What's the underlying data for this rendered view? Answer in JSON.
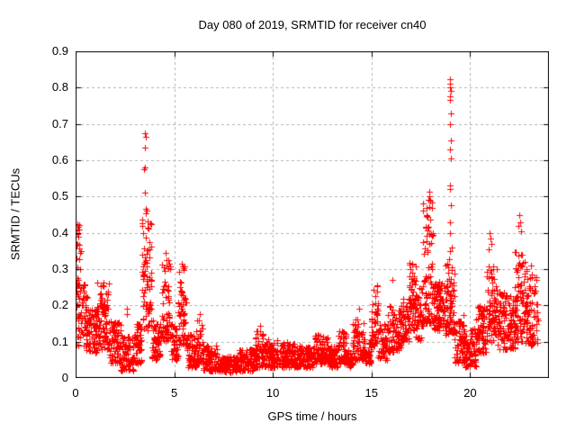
{
  "window": {
    "background_color": "#ffffff",
    "text_color": "#000000"
  },
  "chart_data": {
    "type": "scatter",
    "title": "Day 080 of 2019, SRMTID for receiver cn40",
    "xlabel": "GPS time / hours",
    "ylabel": "SRMTID / TECUs",
    "xlim": [
      0,
      24
    ],
    "ylim": [
      0,
      0.9
    ],
    "xticks": [
      0,
      5,
      10,
      15,
      20
    ],
    "yticks": [
      0,
      0.1,
      0.2,
      0.3,
      0.4,
      0.5,
      0.6,
      0.7,
      0.8,
      0.9
    ],
    "grid": true,
    "grid_style": "dashed",
    "grid_color": "#b0b0b0",
    "border_color": "#000000",
    "legend_position": "none",
    "series_name": "SRMTID",
    "marker": {
      "symbol": "plus",
      "color": "#ff0000",
      "size": 7
    },
    "seed": 7,
    "density_segments": [
      [
        0.0,
        0.3,
        0.16,
        0.43,
        30,
        1.0
      ],
      [
        0.05,
        0.6,
        0.09,
        0.26,
        55,
        1.4
      ],
      [
        0.5,
        1.1,
        0.07,
        0.19,
        80,
        1.2
      ],
      [
        1.1,
        1.7,
        0.08,
        0.27,
        85,
        1.5
      ],
      [
        1.7,
        2.3,
        0.04,
        0.16,
        70,
        1.4
      ],
      [
        2.3,
        3.05,
        0.02,
        0.12,
        85,
        1.3
      ],
      [
        3.05,
        3.35,
        0.04,
        0.15,
        40,
        1.3
      ],
      [
        3.35,
        3.85,
        0.13,
        0.46,
        75,
        1.3
      ],
      [
        3.85,
        4.35,
        0.05,
        0.16,
        55,
        1.3
      ],
      [
        4.35,
        4.85,
        0.1,
        0.33,
        70,
        1.4
      ],
      [
        4.85,
        5.2,
        0.05,
        0.15,
        40,
        1.3
      ],
      [
        5.2,
        5.65,
        0.09,
        0.31,
        60,
        1.4
      ],
      [
        5.65,
        6.1,
        0.03,
        0.12,
        55,
        1.3
      ],
      [
        6.1,
        6.45,
        0.04,
        0.16,
        40,
        1.4
      ],
      [
        6.45,
        7.2,
        0.02,
        0.09,
        90,
        1.3
      ],
      [
        7.2,
        8.3,
        0.015,
        0.06,
        130,
        1.1
      ],
      [
        8.3,
        9.1,
        0.02,
        0.08,
        95,
        1.2
      ],
      [
        9.1,
        9.6,
        0.03,
        0.13,
        60,
        1.5
      ],
      [
        9.6,
        10.3,
        0.03,
        0.11,
        85,
        1.4
      ],
      [
        10.3,
        11.2,
        0.03,
        0.1,
        105,
        1.3
      ],
      [
        11.2,
        12.1,
        0.03,
        0.09,
        105,
        1.2
      ],
      [
        12.1,
        12.8,
        0.04,
        0.12,
        80,
        1.4
      ],
      [
        12.8,
        13.3,
        0.03,
        0.09,
        60,
        1.2
      ],
      [
        13.3,
        13.7,
        0.04,
        0.13,
        48,
        1.4
      ],
      [
        13.7,
        14.05,
        0.03,
        0.08,
        42,
        1.2
      ],
      [
        14.05,
        14.6,
        0.05,
        0.18,
        60,
        1.5
      ],
      [
        14.6,
        15.0,
        0.04,
        0.11,
        45,
        1.3
      ],
      [
        15.0,
        15.35,
        0.09,
        0.28,
        45,
        1.4
      ],
      [
        15.35,
        15.8,
        0.05,
        0.15,
        50,
        1.3
      ],
      [
        15.8,
        16.5,
        0.07,
        0.2,
        85,
        1.3
      ],
      [
        16.5,
        16.9,
        0.1,
        0.22,
        50,
        1.2
      ],
      [
        16.9,
        17.25,
        0.13,
        0.32,
        55,
        1.3
      ],
      [
        17.25,
        17.6,
        0.1,
        0.25,
        45,
        1.2
      ],
      [
        17.6,
        18.15,
        0.15,
        0.5,
        85,
        1.5
      ],
      [
        18.15,
        18.7,
        0.13,
        0.27,
        95,
        1.0
      ],
      [
        18.75,
        19.2,
        0.12,
        0.33,
        75,
        1.2
      ],
      [
        19.2,
        19.7,
        0.04,
        0.18,
        65,
        1.3
      ],
      [
        19.7,
        20.3,
        0.03,
        0.14,
        70,
        1.3
      ],
      [
        20.3,
        20.85,
        0.07,
        0.2,
        70,
        1.2
      ],
      [
        20.85,
        21.4,
        0.1,
        0.31,
        80,
        1.3
      ],
      [
        21.4,
        22.25,
        0.08,
        0.24,
        110,
        1.2
      ],
      [
        22.25,
        22.8,
        0.1,
        0.35,
        85,
        1.3
      ],
      [
        22.8,
        23.45,
        0.09,
        0.3,
        80,
        1.3
      ]
    ],
    "outlier_points": [
      [
        0.07,
        0.425
      ],
      [
        0.1,
        0.41
      ],
      [
        0.12,
        0.39
      ],
      [
        0.08,
        0.37
      ],
      [
        2.58,
        0.19
      ],
      [
        2.62,
        0.175
      ],
      [
        3.5,
        0.675
      ],
      [
        3.55,
        0.665
      ],
      [
        3.5,
        0.635
      ],
      [
        3.53,
        0.58
      ],
      [
        3.47,
        0.575
      ],
      [
        3.5,
        0.51
      ],
      [
        3.56,
        0.465
      ],
      [
        3.62,
        0.46
      ],
      [
        4.55,
        0.345
      ],
      [
        5.4,
        0.315
      ],
      [
        6.28,
        0.175
      ],
      [
        9.35,
        0.145
      ],
      [
        14.35,
        0.19
      ],
      [
        16.05,
        0.27
      ],
      [
        17.05,
        0.315
      ],
      [
        17.93,
        0.513
      ],
      [
        17.95,
        0.5
      ],
      [
        17.9,
        0.49
      ],
      [
        18.98,
        0.823
      ],
      [
        19.0,
        0.81
      ],
      [
        18.99,
        0.8
      ],
      [
        19.02,
        0.79
      ],
      [
        18.97,
        0.775
      ],
      [
        19.0,
        0.765
      ],
      [
        19.01,
        0.73
      ],
      [
        18.99,
        0.7
      ],
      [
        19.02,
        0.655
      ],
      [
        19.0,
        0.63
      ],
      [
        19.03,
        0.605
      ],
      [
        18.98,
        0.53
      ],
      [
        19.0,
        0.52
      ],
      [
        19.04,
        0.475
      ],
      [
        18.97,
        0.43
      ],
      [
        19.0,
        0.4
      ],
      [
        19.05,
        0.36
      ],
      [
        18.96,
        0.35
      ],
      [
        21.0,
        0.4
      ],
      [
        21.05,
        0.385
      ],
      [
        21.1,
        0.37
      ],
      [
        20.95,
        0.355
      ],
      [
        22.5,
        0.45
      ],
      [
        22.55,
        0.43
      ],
      [
        22.45,
        0.42
      ],
      [
        22.6,
        0.405
      ],
      [
        23.1,
        0.31
      ]
    ]
  }
}
